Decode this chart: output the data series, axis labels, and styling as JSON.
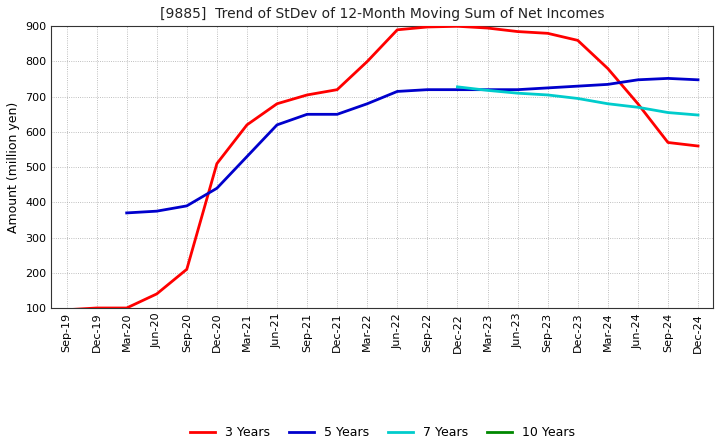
{
  "title": "[9885]  Trend of StDev of 12-Month Moving Sum of Net Incomes",
  "ylabel": "Amount (million yen)",
  "ylim": [
    100,
    900
  ],
  "yticks": [
    100,
    200,
    300,
    400,
    500,
    600,
    700,
    800,
    900
  ],
  "legend_labels": [
    "3 Years",
    "5 Years",
    "7 Years",
    "10 Years"
  ],
  "colors": [
    "#ff0000",
    "#0000cc",
    "#00cccc",
    "#008800"
  ],
  "x_labels": [
    "Sep-19",
    "Dec-19",
    "Mar-20",
    "Jun-20",
    "Sep-20",
    "Dec-20",
    "Mar-21",
    "Jun-21",
    "Sep-21",
    "Dec-21",
    "Mar-22",
    "Jun-22",
    "Sep-22",
    "Dec-22",
    "Mar-23",
    "Jun-23",
    "Sep-23",
    "Dec-23",
    "Mar-24",
    "Jun-24",
    "Sep-24",
    "Dec-24"
  ],
  "series_3y": [
    95,
    100,
    100,
    140,
    210,
    510,
    620,
    680,
    705,
    720,
    800,
    890,
    898,
    900,
    895,
    885,
    880,
    860,
    780,
    680,
    570,
    560
  ],
  "series_5y": [
    null,
    null,
    370,
    375,
    390,
    440,
    530,
    620,
    650,
    650,
    680,
    715,
    720,
    720,
    720,
    720,
    725,
    730,
    735,
    748,
    752,
    748
  ],
  "series_7y": [
    null,
    null,
    null,
    null,
    null,
    null,
    null,
    null,
    null,
    null,
    null,
    null,
    null,
    728,
    718,
    710,
    705,
    695,
    680,
    670,
    655,
    648
  ],
  "series_10y": [
    null,
    null,
    null,
    null,
    null,
    null,
    null,
    null,
    null,
    null,
    null,
    null,
    null,
    null,
    null,
    null,
    null,
    null,
    null,
    null,
    null,
    null
  ]
}
